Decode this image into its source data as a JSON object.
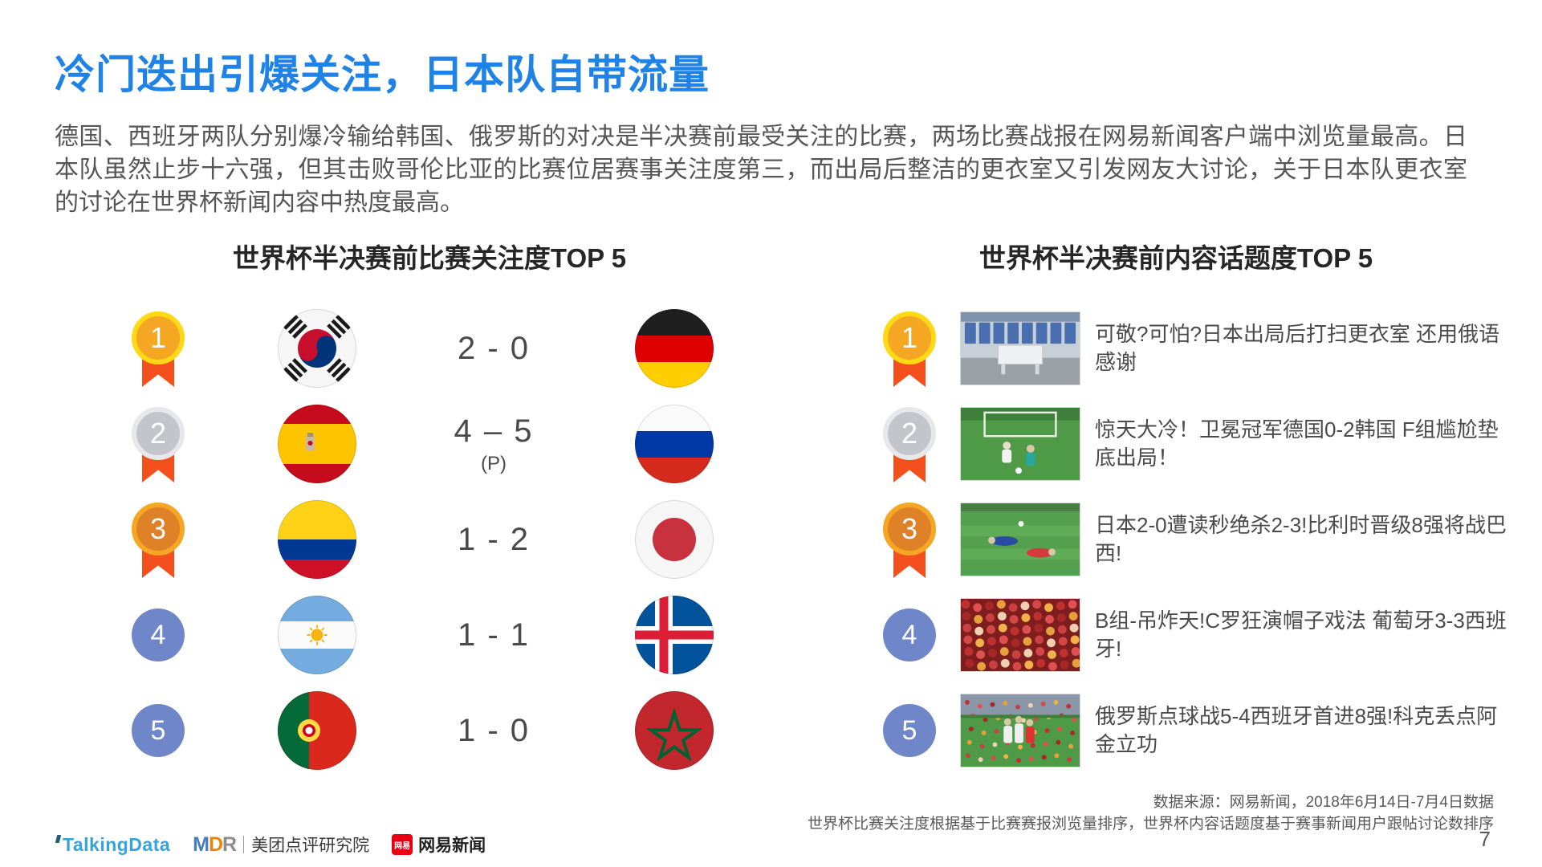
{
  "title": "冷门迭出引爆关注，日本队自带流量",
  "intro": "德国、西班牙两队分别爆冷输给韩国、俄罗斯的对决是半决赛前最受关注的比赛，两场比赛战报在网易新闻客户端中浏览量最高。日本队虽然止步十六强，但其击败哥伦比亚的比赛位居赛事关注度第三，而出局后整洁的更衣室又引发网友大讨论，关于日本队更衣室的讨论在世界杯新闻内容中热度最高。",
  "left_panel": {
    "header": "世界杯半决赛前比赛关注度TOP 5",
    "matches": [
      {
        "rank": "1",
        "home_flag": "south-korea",
        "score": "2 - 0",
        "note": "",
        "away_flag": "germany"
      },
      {
        "rank": "2",
        "home_flag": "spain",
        "score": "4 – 5",
        "note": "(P)",
        "away_flag": "russia"
      },
      {
        "rank": "3",
        "home_flag": "colombia",
        "score": "1 - 2",
        "note": "",
        "away_flag": "japan"
      },
      {
        "rank": "4",
        "home_flag": "argentina",
        "score": "1 - 1",
        "note": "",
        "away_flag": "iceland"
      },
      {
        "rank": "5",
        "home_flag": "portugal",
        "score": "1 - 0",
        "note": "",
        "away_flag": "morocco"
      }
    ]
  },
  "right_panel": {
    "header": "世界杯半决赛前内容话题度TOP 5",
    "topics": [
      {
        "rank": "1",
        "thumbnail": "locker-room",
        "headline": "可敬?可怕?日本出局后打扫更衣室 还用俄语感谢"
      },
      {
        "rank": "2",
        "thumbnail": "germany-korea-match",
        "headline": "惊天大冷！卫冕冠军德国0-2韩国 F组尴尬垫底出局！"
      },
      {
        "rank": "3",
        "thumbnail": "japan-belgium-match",
        "headline": "日本2-0遭读秒绝杀2-3!比利时晋级8强将战巴西!"
      },
      {
        "rank": "4",
        "thumbnail": "portugal-fans",
        "headline": "B组-吊炸天!C罗狂演帽子戏法 葡萄牙3-3西班牙!"
      },
      {
        "rank": "5",
        "thumbnail": "russia-celebration",
        "headline": "俄罗斯点球战5-4西班牙首进8强!科克丢点阿金立功"
      }
    ]
  },
  "footer": {
    "source_line1": "数据来源：网易新闻，2018年6月14日-7月4日数据",
    "source_line2": "世界杯比赛关注度根据基于比赛赛报浏览量排序，世界杯内容话题度基于赛事新闻用户跟帖讨论数排序",
    "page_number": "7",
    "logos": {
      "talkingdata": "TalkingData",
      "mdr": "MDR",
      "meituan": "美团点评研究院",
      "netease_badge": "网易",
      "netease": "网易新闻"
    }
  },
  "colors": {
    "title_blue": "#1E82E6",
    "body_text": "#565656",
    "heading_text": "#262626",
    "score_text": "#4A4A4A",
    "medal_gold_ring": "#FFD816",
    "medal_gold_fill": "#F5A623",
    "medal_silver_ring": "#E8E8EC",
    "medal_silver_fill": "#C4C5CA",
    "medal_bronze_ring": "#F5A623",
    "medal_bronze_fill": "#DE8127",
    "ribbon_red": "#F4501E",
    "rank_circle_blue": "#6F86C9",
    "talkingdata_blue": "#35A3DC",
    "netease_red": "#E60012"
  }
}
